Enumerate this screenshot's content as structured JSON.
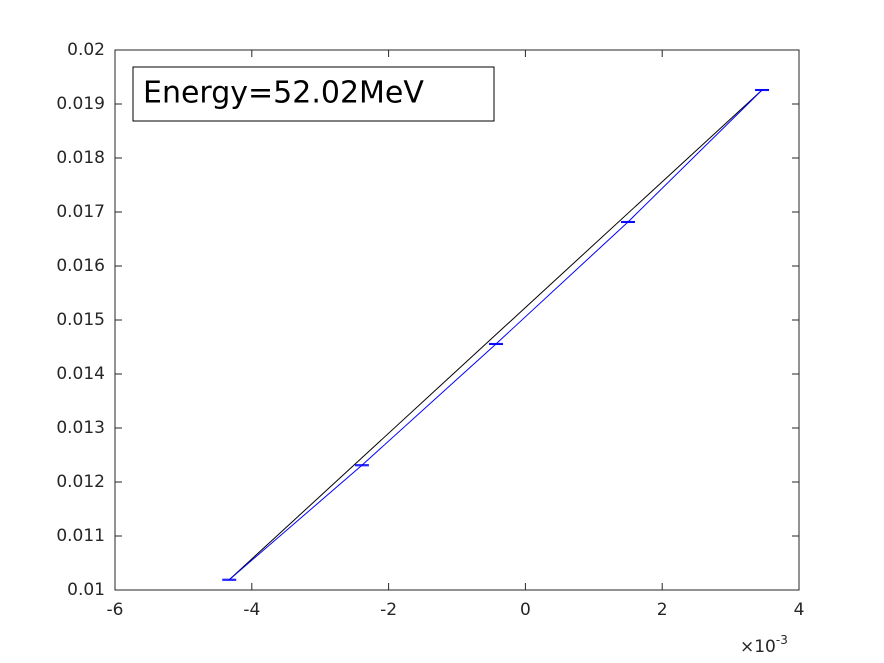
{
  "chart_data": {
    "type": "errorbar",
    "annotation": "Energy=52.02MeV",
    "x_multiplier": {
      "base": "×10",
      "exponent": "-3"
    },
    "series": [
      {
        "color": "#0000ff",
        "x": [
          -0.00433,
          -0.00239,
          -0.00043,
          0.0015,
          0.00346
        ],
        "values": [
          0.01019,
          0.01231,
          0.014556,
          0.016815,
          0.019259
        ],
        "errors": [
          1e-05,
          1e-05,
          1e-05,
          1e-05,
          1e-05
        ]
      },
      {
        "color": "#000000",
        "x": [
          -0.00433,
          0.00346
        ],
        "values": [
          0.01019,
          0.019259
        ]
      }
    ],
    "xlim": [
      -0.006,
      0.004
    ],
    "xticks": [
      {
        "value": -0.006,
        "label": "-6"
      },
      {
        "value": -0.004,
        "label": "-4"
      },
      {
        "value": -0.002,
        "label": "-2"
      },
      0,
      {
        "value": 0.002,
        "label": "2"
      },
      {
        "value": 0.004,
        "label": "4"
      }
    ],
    "ylim": [
      0.01,
      0.02
    ],
    "yticks": [
      0.01,
      0.011,
      0.012,
      0.013,
      0.014,
      0.015,
      0.016,
      0.017,
      0.018,
      0.019,
      0.02
    ]
  }
}
